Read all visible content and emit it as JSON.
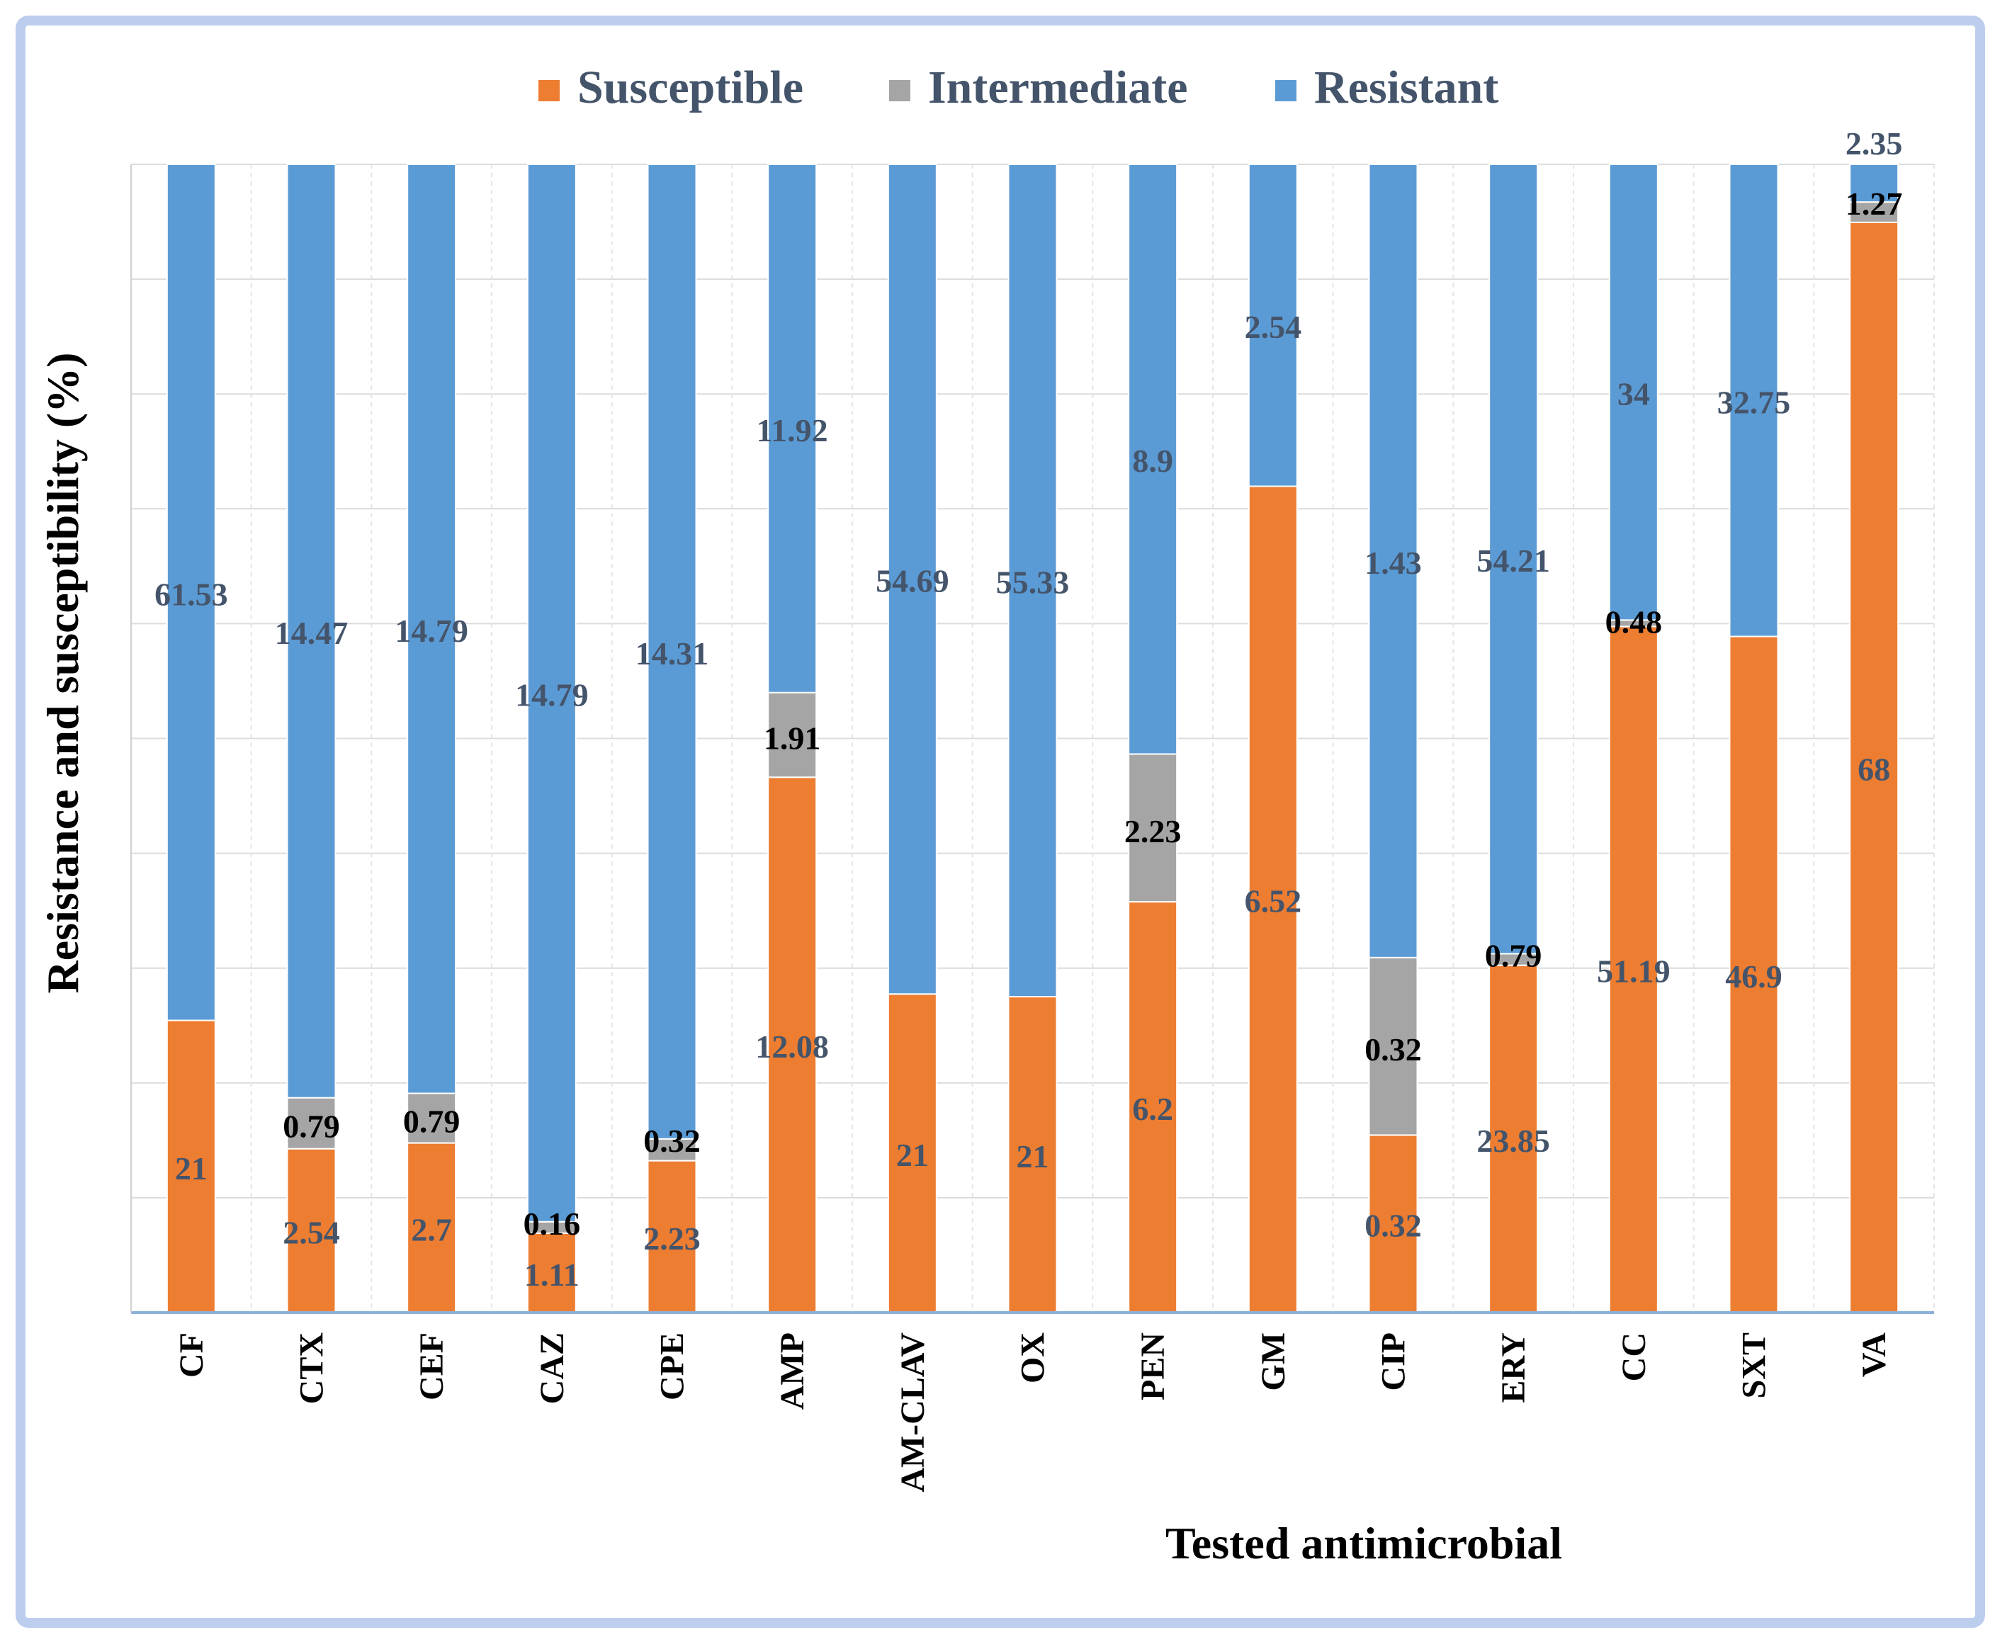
{
  "chart_data": {
    "type": "bar",
    "stacked": true,
    "orientation": "vertical",
    "normalized_percent": true,
    "xlabel": "Tested antimicrobial",
    "ylabel": "Resistance and susceptibility (%)",
    "legend_position": "top",
    "grid": true,
    "categories": [
      "CF",
      "CTX",
      "CEF",
      "CAZ",
      "CPE",
      "AMP",
      "AM-CLAV",
      "OX",
      "PEN",
      "GM",
      "CIP",
      "ERY",
      "CC",
      "SXT",
      "VA"
    ],
    "series": [
      {
        "name": "Susceptible",
        "color": "#ed7d31",
        "label_color": "#44546a",
        "values": [
          21,
          2.54,
          2.7,
          1.11,
          2.23,
          12.08,
          21,
          21,
          6.2,
          6.52,
          0.32,
          23.85,
          51.19,
          46.9,
          68
        ]
      },
      {
        "name": "Intermediate",
        "color": "#a5a5a5",
        "label_color": "#000000",
        "values": [
          0,
          0.79,
          0.79,
          0.16,
          0.32,
          1.91,
          0,
          0,
          2.23,
          0,
          0.32,
          0.79,
          0.48,
          0,
          1.27
        ]
      },
      {
        "name": "Resistant",
        "color": "#5b9bd5",
        "label_color": "#44546a",
        "values": [
          61.53,
          14.47,
          14.79,
          14.79,
          14.31,
          11.92,
          54.69,
          55.33,
          8.9,
          2.54,
          1.43,
          54.21,
          34,
          32.75,
          2.35
        ]
      }
    ]
  }
}
